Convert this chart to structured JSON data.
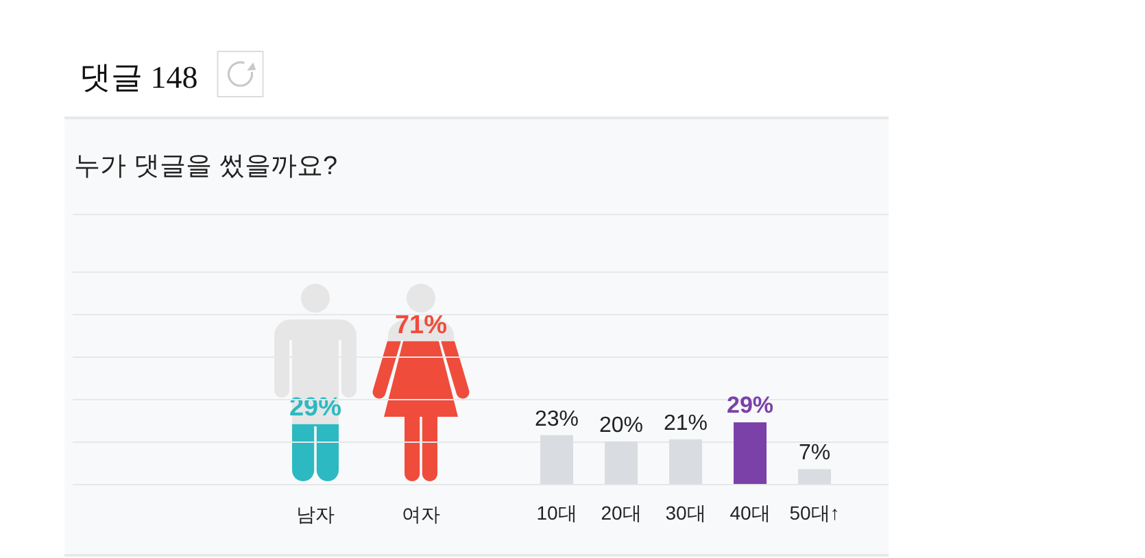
{
  "chart_data": [
    {
      "type": "bar",
      "title": "댓글 148",
      "subtitle": "누가 댓글을 썼을까요?",
      "categories": [
        "남자",
        "여자"
      ],
      "values": [
        29,
        71
      ],
      "colors": [
        "#2cb9c1",
        "#ef4c3c"
      ],
      "value_labels": [
        "29%",
        "71%"
      ],
      "tick_labels": "x"
    },
    {
      "type": "bar",
      "categories": [
        "10대",
        "20대",
        "30대",
        "40대",
        "50대↑"
      ],
      "values": [
        23,
        20,
        21,
        29,
        7
      ],
      "colors": [
        "#d9dde1",
        "#d9dde1",
        "#d9dde1",
        "#7b41a9",
        "#d9dde1"
      ],
      "value_labels": [
        "23%",
        "20%",
        "21%",
        "29%",
        "7%"
      ],
      "ylim": [
        0,
        100
      ],
      "yticks": [
        {
          "value": 0,
          "label": null
        },
        {
          "value": 20,
          "label": null
        },
        {
          "value": 40,
          "label": null
        },
        {
          "value": 60,
          "label": null
        },
        {
          "value": 80,
          "label": null
        },
        {
          "value": 100,
          "label": null
        }
      ],
      "grid": "y",
      "tick_labels": "x"
    }
  ]
}
